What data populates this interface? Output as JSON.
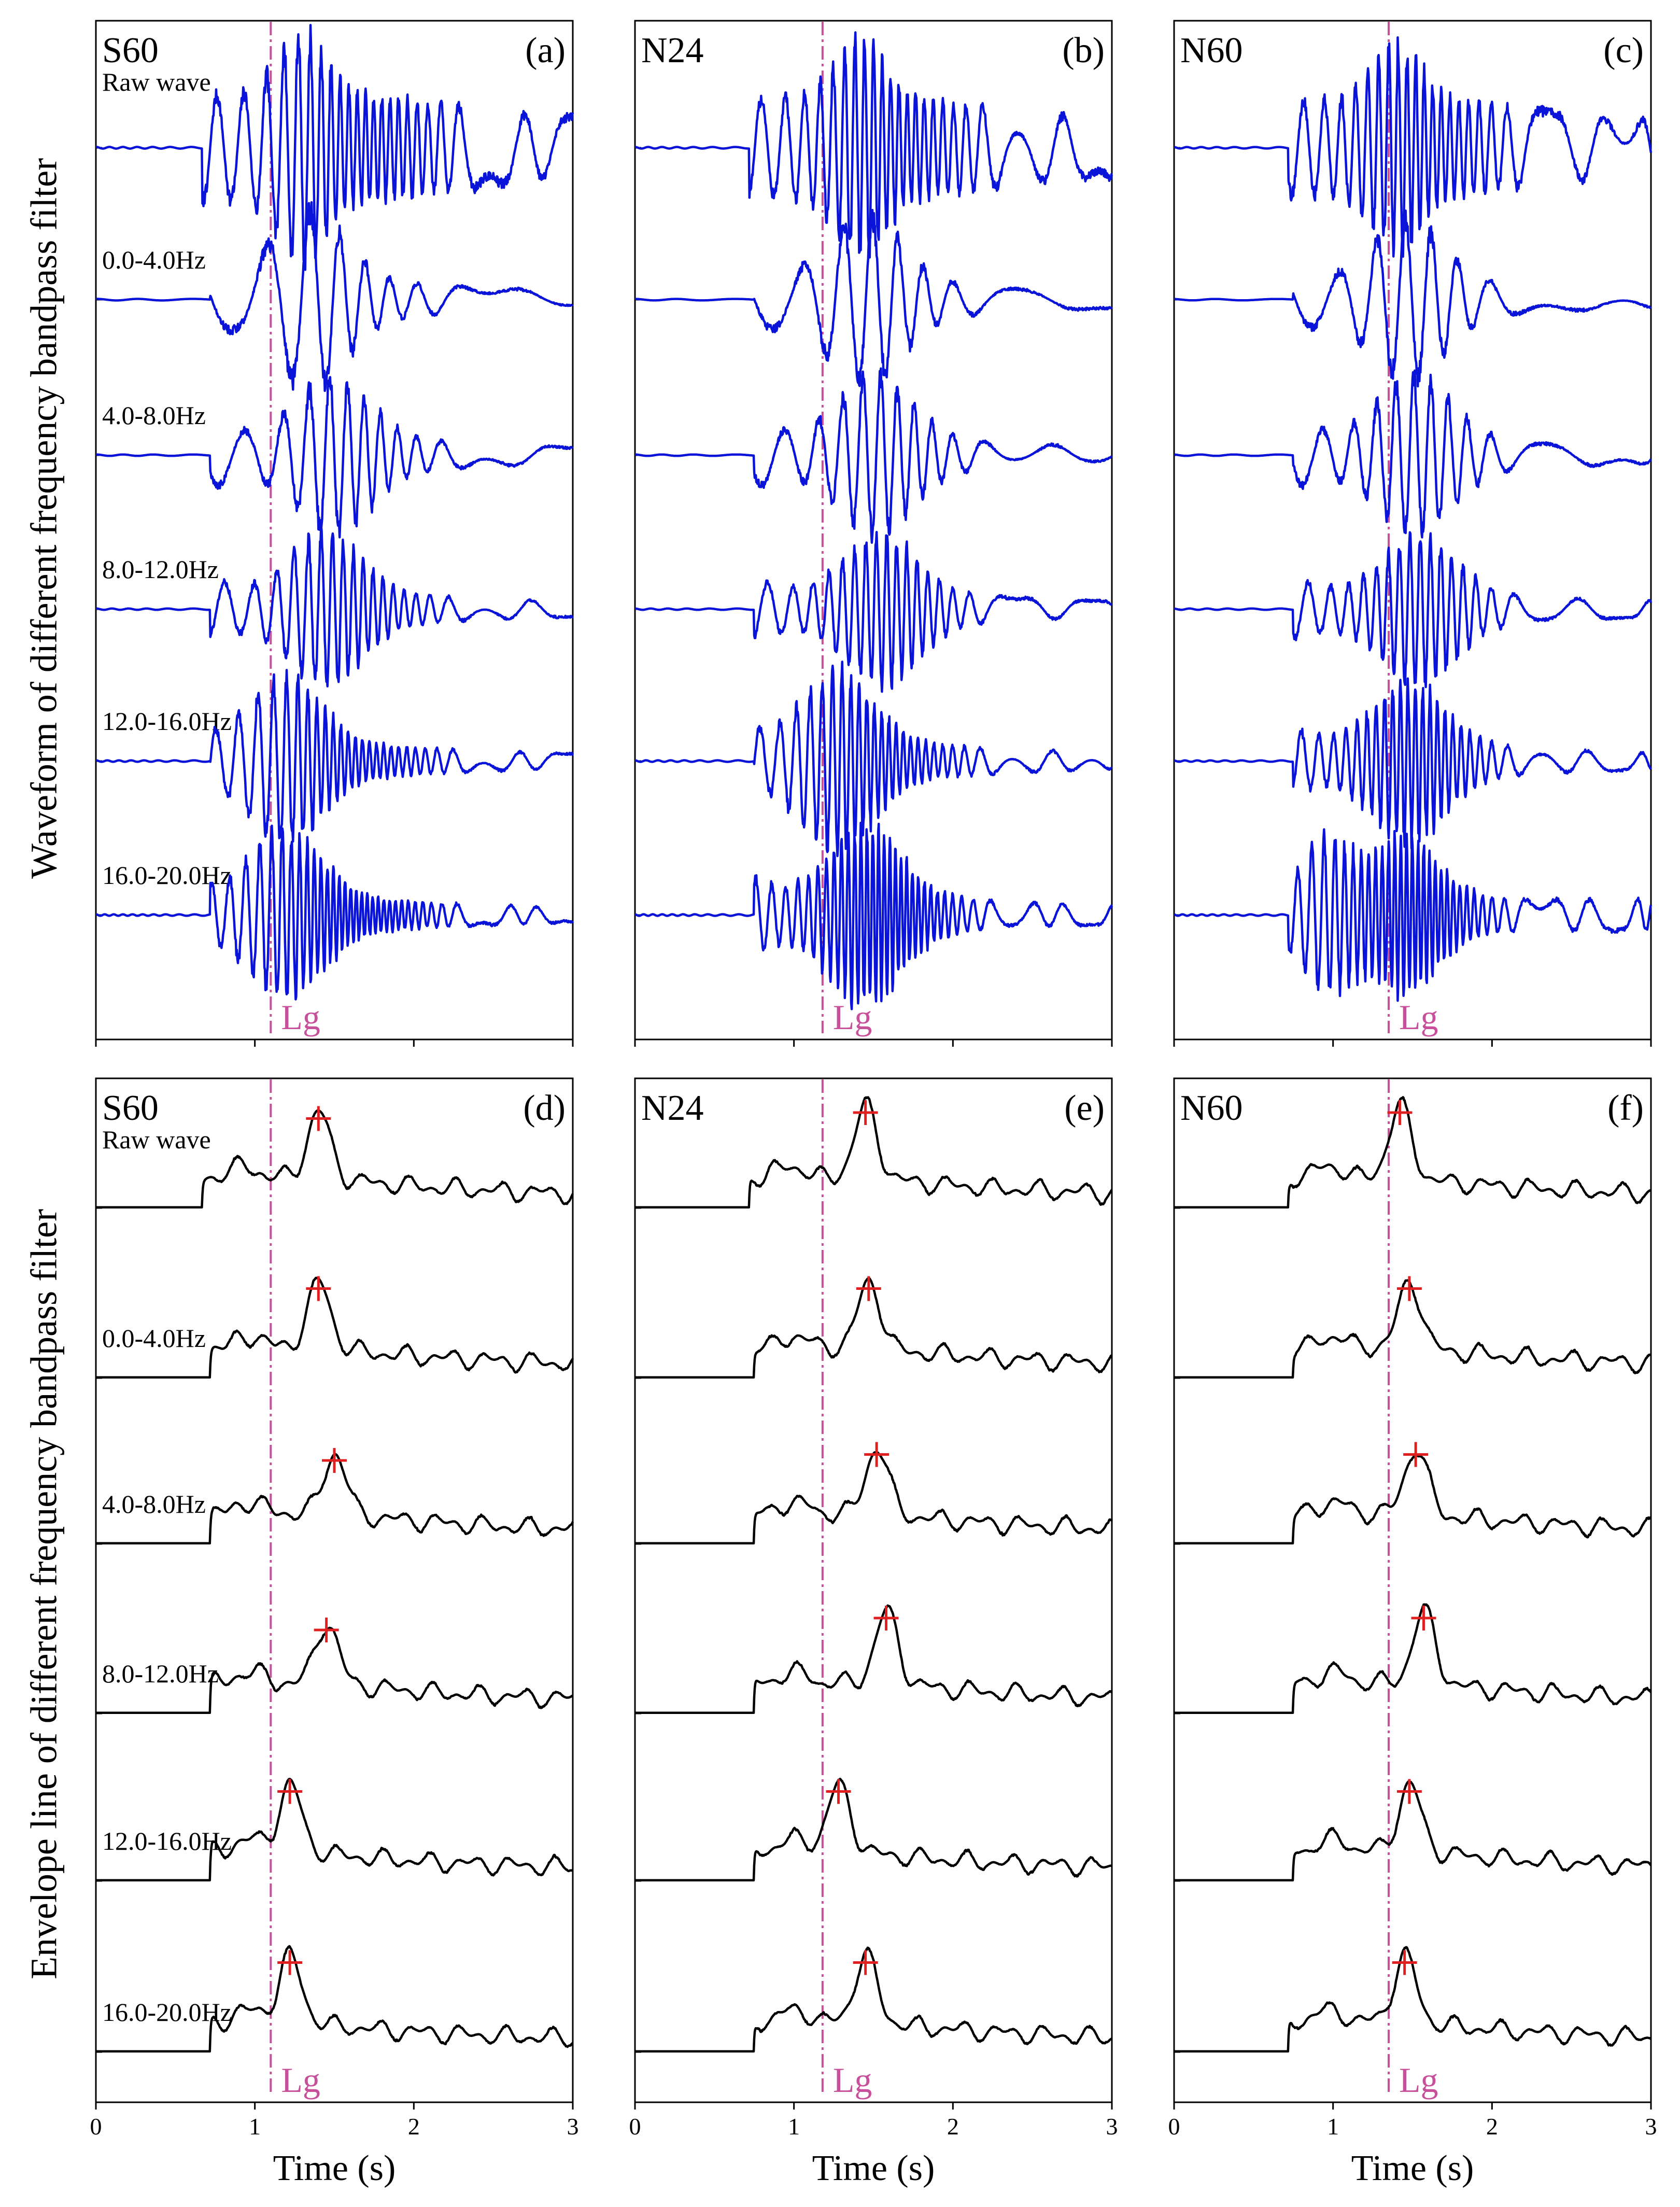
{
  "figure": {
    "ylabel_top": "Waveform of different frequency bandpass filter",
    "ylabel_bottom": "Envelope line of different frequency bandpass filter",
    "xlabel": "Time (s)",
    "x_ticks": [
      "0",
      "1",
      "2",
      "3"
    ],
    "lg_label": "Lg",
    "trace_labels": [
      "Raw wave",
      "0.0-4.0Hz",
      "4.0-8.0Hz",
      "8.0-12.0Hz",
      "12.0-16.0Hz",
      "16.0-20.0Hz"
    ],
    "colors": {
      "waveform": "#0a14d8",
      "envelope": "#000000",
      "lg_line": "#c8509a",
      "peak_marker": "#e02020",
      "axes": "#000000"
    }
  },
  "chart_data": [
    {
      "type": "line",
      "panel": "(a)",
      "row": "waveform",
      "station": "S60",
      "xlim": [
        0,
        3
      ],
      "lg_time": 1.1,
      "traces": [
        {
          "label": "Raw wave",
          "onset": 0.67,
          "amp": 0.95,
          "freq": 12,
          "env": "burst_then_lg",
          "peak": 1.3
        },
        {
          "label": "0.0-4.0Hz",
          "onset": 0.72,
          "amp": 0.9,
          "freq": 4,
          "env": "peak",
          "peak": 1.35
        },
        {
          "label": "4.0-8.0Hz",
          "onset": 0.72,
          "amp": 0.8,
          "freq": 6,
          "env": "peak",
          "peak": 1.5
        },
        {
          "label": "8.0-12.0Hz",
          "onset": 0.72,
          "amp": 0.75,
          "freq": 10,
          "env": "peak",
          "peak": 1.45
        },
        {
          "label": "12.0-16.0Hz",
          "onset": 0.72,
          "amp": 0.85,
          "freq": 14,
          "env": "peak",
          "peak": 1.2
        },
        {
          "label": "16.0-20.0Hz",
          "onset": 0.72,
          "amp": 0.85,
          "freq": 18,
          "env": "peak",
          "peak": 1.2
        }
      ]
    },
    {
      "type": "line",
      "panel": "(b)",
      "row": "waveform",
      "station": "N24",
      "xlim": [
        0,
        3
      ],
      "lg_time": 1.18,
      "traces": [
        {
          "label": "Raw wave",
          "onset": 0.72,
          "amp": 0.9,
          "freq": 12,
          "env": "burst_then_lg",
          "peak": 1.42
        },
        {
          "label": "0.0-4.0Hz",
          "onset": 0.75,
          "amp": 0.85,
          "freq": 4,
          "env": "peak",
          "peak": 1.45
        },
        {
          "label": "4.0-8.0Hz",
          "onset": 0.75,
          "amp": 0.8,
          "freq": 6,
          "env": "peak",
          "peak": 1.52
        },
        {
          "label": "8.0-12.0Hz",
          "onset": 0.75,
          "amp": 0.75,
          "freq": 10,
          "env": "peak",
          "peak": 1.55
        },
        {
          "label": "12.0-16.0Hz",
          "onset": 0.75,
          "amp": 0.9,
          "freq": 14,
          "env": "peak",
          "peak": 1.28
        },
        {
          "label": "16.0-20.0Hz",
          "onset": 0.75,
          "amp": 0.9,
          "freq": 18,
          "env": "peak",
          "peak": 1.45
        }
      ]
    },
    {
      "type": "line",
      "panel": "(c)",
      "row": "waveform",
      "station": "N60",
      "xlim": [
        0,
        3
      ],
      "lg_time": 1.35,
      "traces": [
        {
          "label": "Raw wave",
          "onset": 0.72,
          "amp": 0.85,
          "freq": 12,
          "env": "burst_then_lg",
          "peak": 1.4
        },
        {
          "label": "0.0-4.0Hz",
          "onset": 0.75,
          "amp": 0.8,
          "freq": 4,
          "env": "peak",
          "peak": 1.48
        },
        {
          "label": "4.0-8.0Hz",
          "onset": 0.75,
          "amp": 0.8,
          "freq": 6,
          "env": "peak",
          "peak": 1.52
        },
        {
          "label": "8.0-12.0Hz",
          "onset": 0.75,
          "amp": 0.75,
          "freq": 10,
          "env": "peak",
          "peak": 1.55
        },
        {
          "label": "12.0-16.0Hz",
          "onset": 0.75,
          "amp": 0.8,
          "freq": 14,
          "env": "peak",
          "peak": 1.48
        },
        {
          "label": "16.0-20.0Hz",
          "onset": 0.72,
          "amp": 0.85,
          "freq": 18,
          "env": "two_bursts",
          "peak": 1.45
        }
      ]
    },
    {
      "type": "line",
      "panel": "(d)",
      "row": "envelope",
      "station": "S60",
      "xlim": [
        0,
        3
      ],
      "lg_time": 1.1,
      "traces": [
        {
          "label": "Raw wave",
          "onset": 0.67,
          "amp": 0.6,
          "peak": 1.4,
          "peak_amp": 0.55
        },
        {
          "label": "0.0-4.0Hz",
          "onset": 0.72,
          "amp": 0.55,
          "peak": 1.4,
          "peak_amp": 0.55
        },
        {
          "label": "4.0-8.0Hz",
          "onset": 0.72,
          "amp": 0.5,
          "peak": 1.5,
          "peak_amp": 0.5
        },
        {
          "label": "8.0-12.0Hz",
          "onset": 0.72,
          "amp": 0.5,
          "peak": 1.45,
          "peak_amp": 0.5
        },
        {
          "label": "12.0-16.0Hz",
          "onset": 0.72,
          "amp": 0.5,
          "peak": 1.22,
          "peak_amp": 0.55
        },
        {
          "label": "16.0-20.0Hz",
          "onset": 0.72,
          "amp": 0.5,
          "peak": 1.22,
          "peak_amp": 0.55
        }
      ]
    },
    {
      "type": "line",
      "panel": "(e)",
      "row": "envelope",
      "station": "N24",
      "xlim": [
        0,
        3
      ],
      "lg_time": 1.18,
      "traces": [
        {
          "label": "Raw wave",
          "onset": 0.72,
          "amp": 0.5,
          "peak": 1.45,
          "peak_amp": 0.6
        },
        {
          "label": "0.0-4.0Hz",
          "onset": 0.75,
          "amp": 0.45,
          "peak": 1.47,
          "peak_amp": 0.55
        },
        {
          "label": "4.0-8.0Hz",
          "onset": 0.75,
          "amp": 0.45,
          "peak": 1.52,
          "peak_amp": 0.55
        },
        {
          "label": "8.0-12.0Hz",
          "onset": 0.75,
          "amp": 0.5,
          "peak": 1.58,
          "peak_amp": 0.6
        },
        {
          "label": "12.0-16.0Hz",
          "onset": 0.75,
          "amp": 0.45,
          "peak": 1.28,
          "peak_amp": 0.55
        },
        {
          "label": "16.0-20.0Hz",
          "onset": 0.75,
          "amp": 0.45,
          "peak": 1.45,
          "peak_amp": 0.55
        }
      ]
    },
    {
      "type": "line",
      "panel": "(f)",
      "row": "envelope",
      "station": "N60",
      "xlim": [
        0,
        3
      ],
      "lg_time": 1.35,
      "traces": [
        {
          "label": "Raw wave",
          "onset": 0.72,
          "amp": 0.45,
          "peak": 1.42,
          "peak_amp": 0.6
        },
        {
          "label": "0.0-4.0Hz",
          "onset": 0.75,
          "amp": 0.4,
          "peak": 1.48,
          "peak_amp": 0.55
        },
        {
          "label": "4.0-8.0Hz",
          "onset": 0.75,
          "amp": 0.4,
          "peak": 1.52,
          "peak_amp": 0.55
        },
        {
          "label": "8.0-12.0Hz",
          "onset": 0.75,
          "amp": 0.45,
          "peak": 1.57,
          "peak_amp": 0.6
        },
        {
          "label": "12.0-16.0Hz",
          "onset": 0.75,
          "amp": 0.4,
          "peak": 1.48,
          "peak_amp": 0.55
        },
        {
          "label": "16.0-20.0Hz",
          "onset": 0.72,
          "amp": 0.45,
          "peak": 1.45,
          "peak_amp": 0.55
        }
      ]
    }
  ]
}
